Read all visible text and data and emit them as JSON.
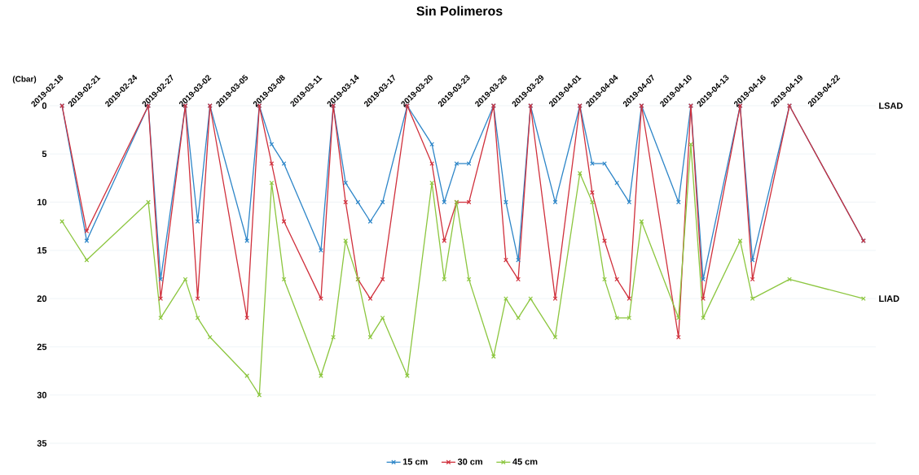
{
  "chart_data": {
    "type": "line",
    "title": "Sin Polimeros",
    "ylabel": "(Cbar)",
    "x": [
      "2019-02-18",
      "2019-02-20",
      "2019-02-25",
      "2019-02-26",
      "2019-02-28",
      "2019-03-01",
      "2019-03-02",
      "2019-03-05",
      "2019-03-06",
      "2019-03-07",
      "2019-03-08",
      "2019-03-11",
      "2019-03-12",
      "2019-03-13",
      "2019-03-14",
      "2019-03-15",
      "2019-03-16",
      "2019-03-18",
      "2019-03-20",
      "2019-03-21",
      "2019-03-22",
      "2019-03-23",
      "2019-03-25",
      "2019-03-26",
      "2019-03-27",
      "2019-03-28",
      "2019-03-30",
      "2019-04-01",
      "2019-04-02",
      "2019-04-03",
      "2019-04-04",
      "2019-04-05",
      "2019-04-06",
      "2019-04-09",
      "2019-04-10",
      "2019-04-11",
      "2019-04-14",
      "2019-04-15",
      "2019-04-18",
      "2019-04-24"
    ],
    "series": [
      {
        "name": "15 cm",
        "color": "#2e86c8",
        "values": [
          0,
          14,
          0,
          18,
          0,
          12,
          0,
          14,
          0,
          4,
          6,
          15,
          0,
          8,
          10,
          12,
          10,
          0,
          4,
          10,
          6,
          6,
          0,
          10,
          16,
          0,
          10,
          0,
          6,
          6,
          8,
          10,
          0,
          10,
          0,
          18,
          0,
          16,
          0,
          14
        ]
      },
      {
        "name": "30 cm",
        "color": "#d0303c",
        "values": [
          0,
          13,
          0,
          20,
          0,
          20,
          0,
          22,
          0,
          6,
          12,
          20,
          0,
          10,
          18,
          20,
          18,
          0,
          6,
          14,
          10,
          10,
          0,
          16,
          18,
          0,
          20,
          0,
          9,
          14,
          18,
          20,
          0,
          24,
          0,
          20,
          0,
          18,
          0,
          14
        ]
      },
      {
        "name": "45 cm",
        "color": "#8cc63f",
        "values": [
          12,
          16,
          10,
          22,
          18,
          22,
          24,
          28,
          30,
          8,
          18,
          28,
          24,
          14,
          18,
          24,
          22,
          28,
          8,
          18,
          10,
          18,
          26,
          20,
          22,
          20,
          24,
          7,
          10,
          18,
          22,
          22,
          12,
          22,
          4,
          22,
          14,
          20,
          18,
          20
        ]
      }
    ],
    "xlim": [
      "2019-02-17",
      "2019-04-25"
    ],
    "xticks": [
      "2019-02-18",
      "2019-02-21",
      "2019-02-24",
      "2019-02-27",
      "2019-03-02",
      "2019-03-05",
      "2019-03-08",
      "2019-03-11",
      "2019-03-14",
      "2019-03-17",
      "2019-03-20",
      "2019-03-23",
      "2019-03-26",
      "2019-03-29",
      "2019-04-01",
      "2019-04-04",
      "2019-04-07",
      "2019-04-10",
      "2019-04-13",
      "2019-04-16",
      "2019-04-19",
      "2019-04-22"
    ],
    "ylim": [
      35,
      0
    ],
    "yticks": [
      0,
      5,
      10,
      15,
      20,
      25,
      30,
      35
    ],
    "annotations": [
      "LSAD",
      "LIAD"
    ],
    "grid": "y",
    "legend": "bottom",
    "marker": "cross",
    "line_style": "solid"
  }
}
